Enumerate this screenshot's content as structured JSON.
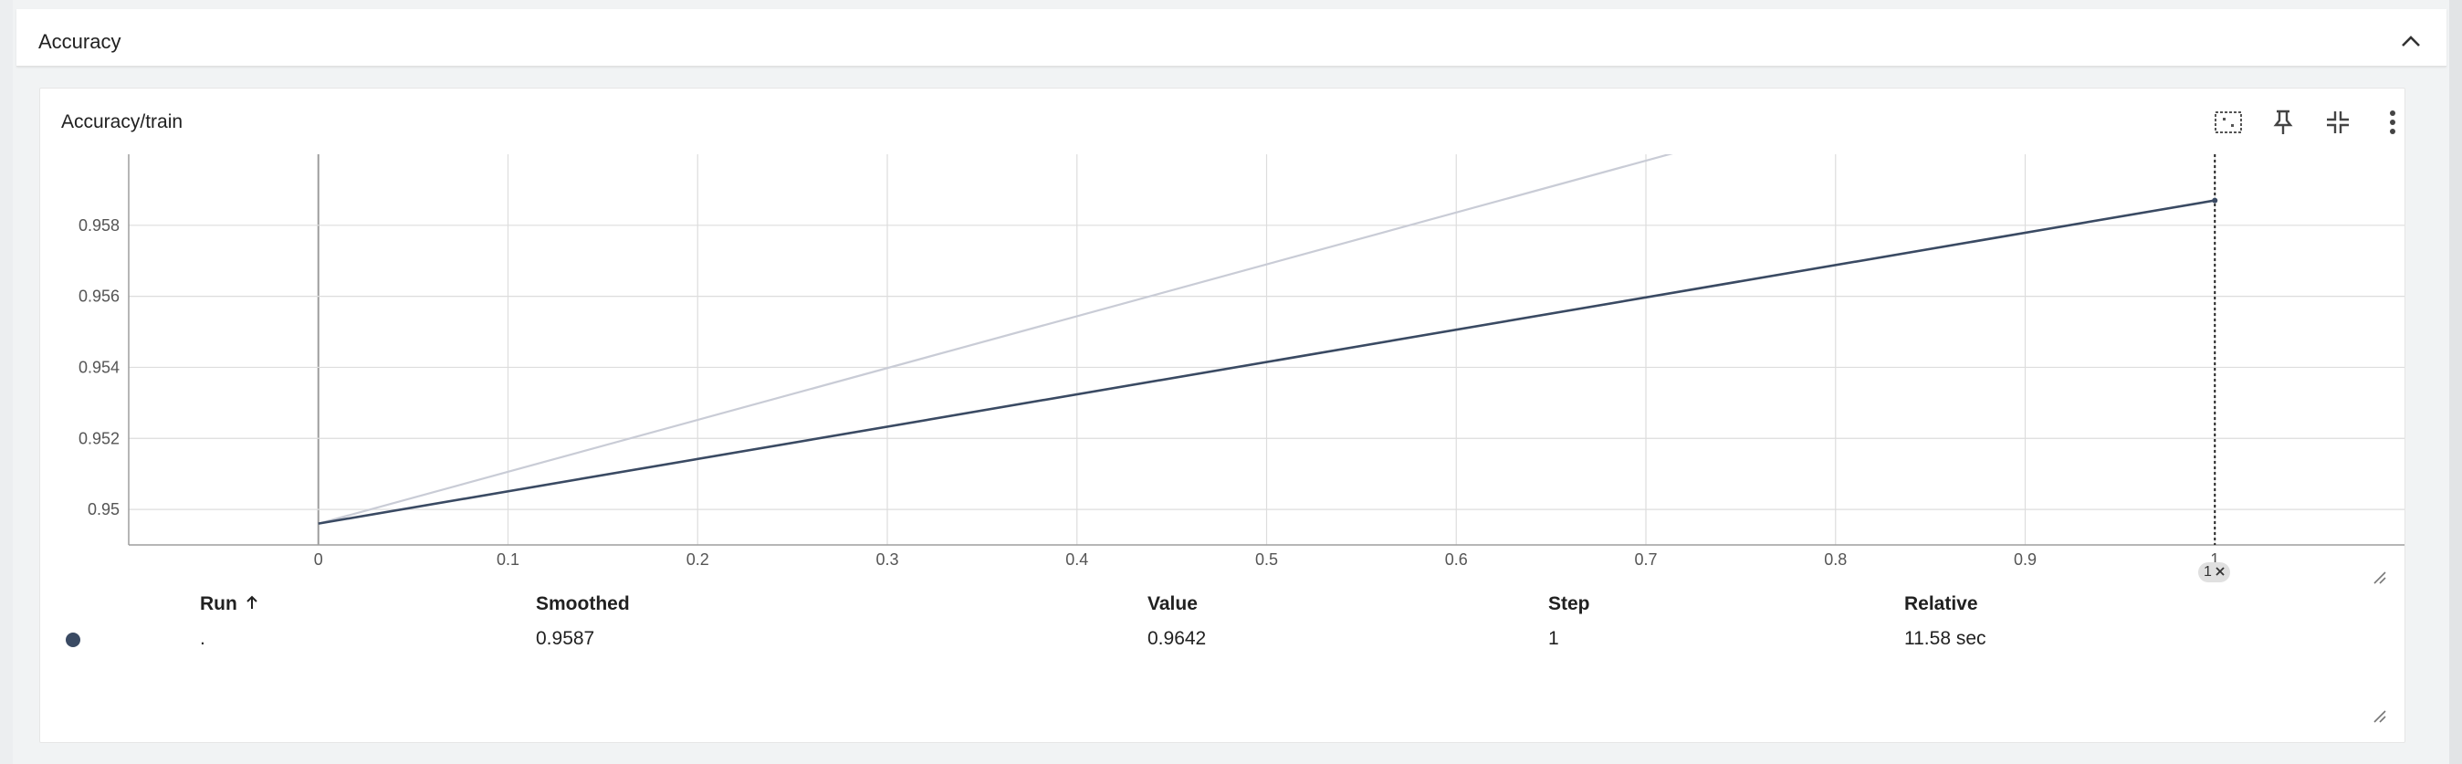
{
  "section": {
    "title": "Accuracy",
    "collapse_icon": "chevron-up-icon"
  },
  "card": {
    "title": "Accuracy/train",
    "toolbar": {
      "fit_icon": "fit-domain-icon",
      "pin_icon": "pin-icon",
      "minimize_icon": "collapse-arrows-icon",
      "more_icon": "more-vert-icon"
    }
  },
  "chart_data": {
    "type": "line",
    "x_ticks": [
      "0",
      "0.1",
      "0.2",
      "0.3",
      "0.4",
      "0.5",
      "0.6",
      "0.7",
      "0.8",
      "0.9",
      "1"
    ],
    "y_ticks": [
      "0.95",
      "0.952",
      "0.954",
      "0.956",
      "0.958"
    ],
    "xlim": [
      -0.1,
      1.1
    ],
    "ylim": [
      0.949,
      0.96
    ],
    "grid": true,
    "series": [
      {
        "role": "raw",
        "color": "#c9ccd6",
        "points": [
          [
            0,
            0.9496
          ],
          [
            1,
            0.9642
          ]
        ]
      },
      {
        "role": "smoothed",
        "color": "#3a4a63",
        "points": [
          [
            0,
            0.9496
          ],
          [
            1,
            0.9587
          ]
        ]
      }
    ],
    "cursor_x": 1
  },
  "step_chip": {
    "label": "1",
    "close_icon": "close-icon"
  },
  "table": {
    "headers": {
      "run": "Run",
      "run_sort_icon": "arrow-up-icon",
      "smoothed": "Smoothed",
      "value": "Value",
      "step": "Step",
      "relative": "Relative"
    },
    "rows": [
      {
        "color": "#3a4a63",
        "run": ".",
        "smoothed": "0.9587",
        "value": "0.9642",
        "step": "1",
        "relative": "11.58 sec"
      }
    ]
  }
}
